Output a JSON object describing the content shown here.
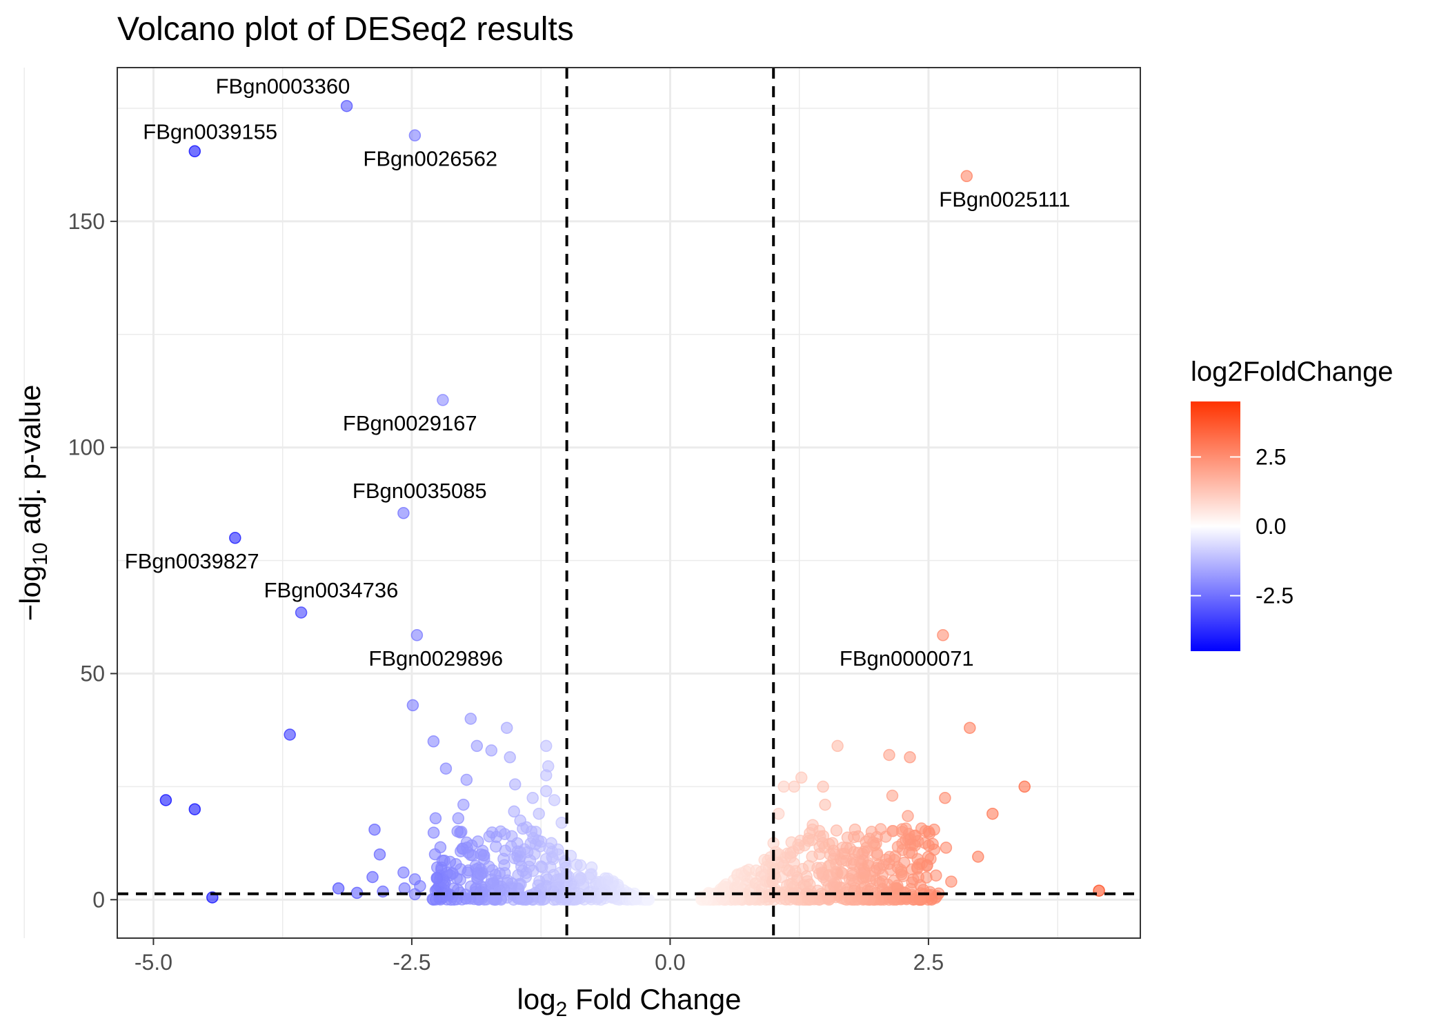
{
  "chart_data": {
    "type": "scatter",
    "title": "Volcano plot of DESeq2 results",
    "xlabel": {
      "prefix": "log",
      "sub": "2",
      "suffix": " Fold Change"
    },
    "ylabel": {
      "prefix": "−log",
      "sub": "10",
      "suffix": " adj. p-value"
    },
    "xlim": [
      -5.35,
      4.55
    ],
    "ylim": [
      -8.5,
      184
    ],
    "x_ticks": [
      -5.0,
      -2.5,
      0.0,
      2.5
    ],
    "x_tick_labels": [
      "-5.0",
      "-2.5",
      "0.0",
      "2.5"
    ],
    "y_ticks": [
      0,
      50,
      100,
      150
    ],
    "y_tick_labels": [
      "0",
      "50",
      "100",
      "150"
    ],
    "grid": true,
    "threshold_lines": {
      "x": [
        -1,
        1
      ],
      "y": [
        1.3
      ]
    },
    "legend": {
      "title": "log2FoldChange",
      "placement": "right",
      "range": [
        -4.5,
        4.5
      ],
      "ticks": [
        2.5,
        0.0,
        -2.5
      ],
      "tick_labels": [
        "2.5",
        "0.0",
        "-2.5"
      ],
      "low_color": "#0000ff",
      "mid_color": "#ffffff",
      "high_color": "#ff3300"
    },
    "labeled_points": [
      {
        "gene": "FBgn0003360",
        "x": -3.13,
        "y": 175.5
      },
      {
        "gene": "FBgn0039155",
        "x": -4.6,
        "y": 165.5
      },
      {
        "gene": "FBgn0026562",
        "x": -2.47,
        "y": 169
      },
      {
        "gene": "FBgn0025111",
        "x": 2.87,
        "y": 160
      },
      {
        "gene": "FBgn0029167",
        "x": -2.2,
        "y": 110.5
      },
      {
        "gene": "FBgn0035085",
        "x": -2.58,
        "y": 85.5
      },
      {
        "gene": "FBgn0039827",
        "x": -4.21,
        "y": 80
      },
      {
        "gene": "FBgn0034736",
        "x": -3.57,
        "y": 63.5
      },
      {
        "gene": "FBgn0029896",
        "x": -2.45,
        "y": 58.5
      },
      {
        "gene": "FBgn0000071",
        "x": 2.64,
        "y": 58.5
      }
    ],
    "points": [
      [
        -3.68,
        36.5
      ],
      [
        -2.49,
        43
      ],
      [
        -4.88,
        22
      ],
      [
        -4.6,
        20
      ],
      [
        -4.43,
        0.5
      ],
      [
        -3.21,
        2.5
      ],
      [
        -3.03,
        1.5
      ],
      [
        -2.88,
        5
      ],
      [
        -2.86,
        15.5
      ],
      [
        -2.81,
        10
      ],
      [
        -2.78,
        1.8
      ],
      [
        -2.58,
        6
      ],
      [
        -2.57,
        2.5
      ],
      [
        -2.47,
        4.5
      ],
      [
        -2.47,
        1.2
      ],
      [
        -2.42,
        3
      ],
      [
        -2.29,
        35
      ],
      [
        -2.27,
        18
      ],
      [
        -2.17,
        29
      ],
      [
        -2.15,
        1
      ],
      [
        -2.05,
        18
      ],
      [
        -2.02,
        15
      ],
      [
        -2.0,
        21
      ],
      [
        -1.97,
        26.5
      ],
      [
        -1.96,
        6
      ],
      [
        -1.93,
        40
      ],
      [
        -1.92,
        12
      ],
      [
        -1.87,
        34
      ],
      [
        -1.85,
        7
      ],
      [
        -1.83,
        10
      ],
      [
        -1.8,
        9
      ],
      [
        -1.73,
        33
      ],
      [
        -1.69,
        5.5
      ],
      [
        -1.65,
        2
      ],
      [
        -1.6,
        14.5
      ],
      [
        -1.58,
        38
      ],
      [
        -1.55,
        31.5
      ],
      [
        -1.51,
        19.5
      ],
      [
        -1.5,
        25.5
      ],
      [
        -1.45,
        17.5
      ],
      [
        -1.39,
        16
      ],
      [
        -1.38,
        10.5
      ],
      [
        -1.33,
        22.5
      ],
      [
        -1.3,
        15
      ],
      [
        -1.27,
        19
      ],
      [
        -1.2,
        34
      ],
      [
        -1.2,
        27.5
      ],
      [
        -1.2,
        24
      ],
      [
        -1.18,
        29.5
      ],
      [
        -1.15,
        12.5
      ],
      [
        -1.12,
        22
      ],
      [
        -1.08,
        10
      ],
      [
        -1.05,
        17
      ],
      [
        -1.02,
        8.5
      ],
      [
        -1.0,
        5
      ],
      [
        1.0,
        12.5
      ],
      [
        1.05,
        19
      ],
      [
        1.1,
        25
      ],
      [
        1.2,
        25
      ],
      [
        1.27,
        27
      ],
      [
        1.3,
        12
      ],
      [
        1.38,
        16.5
      ],
      [
        1.45,
        14
      ],
      [
        1.48,
        25
      ],
      [
        1.5,
        21
      ],
      [
        1.57,
        12.5
      ],
      [
        1.62,
        34
      ],
      [
        1.67,
        11.5
      ],
      [
        1.78,
        10.5
      ],
      [
        1.82,
        14
      ],
      [
        1.9,
        11.5
      ],
      [
        1.95,
        15
      ],
      [
        2.0,
        7
      ],
      [
        2.12,
        32
      ],
      [
        2.15,
        23
      ],
      [
        2.2,
        2.5
      ],
      [
        2.25,
        11
      ],
      [
        2.3,
        18.5
      ],
      [
        2.32,
        31.5
      ],
      [
        2.37,
        12
      ],
      [
        2.66,
        22.5
      ],
      [
        2.67,
        11.5
      ],
      [
        2.72,
        4
      ],
      [
        2.9,
        38
      ],
      [
        2.98,
        9.5
      ],
      [
        3.12,
        19
      ],
      [
        3.43,
        25
      ],
      [
        4.15,
        2
      ]
    ]
  }
}
